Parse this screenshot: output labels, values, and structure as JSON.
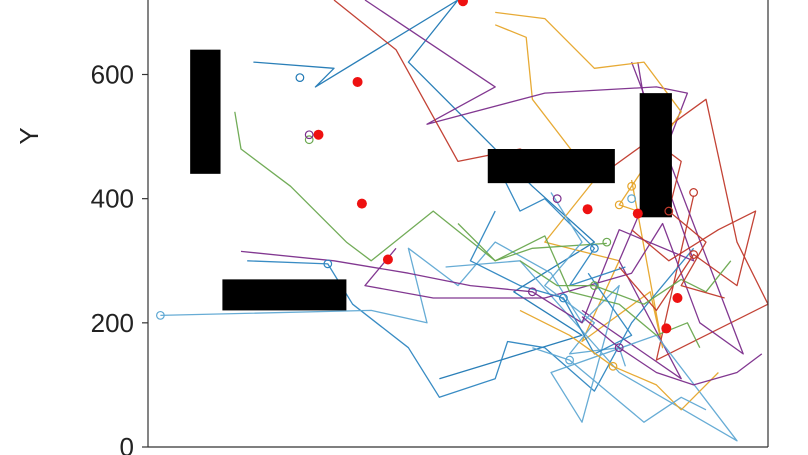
{
  "chart_data": {
    "type": "line",
    "title": "",
    "xlabel": "",
    "ylabel": "Y",
    "xlim": [
      0,
      1000
    ],
    "ylim": [
      0,
      720
    ],
    "grid": false,
    "legend": "none",
    "yticks": [
      {
        "value": 0,
        "label": "0"
      },
      {
        "value": 200,
        "label": "200"
      },
      {
        "value": 400,
        "label": "400"
      },
      {
        "value": 600,
        "label": "600"
      }
    ],
    "colors": {
      "target_point": "#ee1111",
      "obstacle": "#000000",
      "axis": "#333333"
    },
    "obstacles": [
      {
        "name": "left-vertical-wall",
        "x": [
          68,
          117
        ],
        "y": [
          440,
          640
        ]
      },
      {
        "name": "bottom-left-wall",
        "x": [
          120,
          320
        ],
        "y": [
          220,
          270
        ]
      },
      {
        "name": "center-horizontal-wall",
        "x": [
          548,
          753
        ],
        "y": [
          425,
          480
        ]
      },
      {
        "name": "right-vertical-wall",
        "x": [
          793,
          845
        ],
        "y": [
          370,
          570
        ]
      }
    ],
    "targets": [
      {
        "x": 508,
        "y": 718
      },
      {
        "x": 338,
        "y": 588
      },
      {
        "x": 275,
        "y": 503
      },
      {
        "x": 345,
        "y": 392
      },
      {
        "x": 387,
        "y": 302
      },
      {
        "x": 709,
        "y": 383
      },
      {
        "x": 790,
        "y": 376
      },
      {
        "x": 854,
        "y": 240
      },
      {
        "x": 836,
        "y": 191
      }
    ],
    "series": [
      {
        "color": "#1f78b4",
        "start": [
          245,
          595
        ],
        "end": [
          710,
          528
        ],
        "points": [
          [
            170,
            620
          ],
          [
            300,
            610
          ],
          [
            270,
            580
          ],
          [
            500,
            720
          ],
          [
            420,
            620
          ],
          [
            620,
            420
          ],
          [
            720,
            330
          ],
          [
            590,
            250
          ],
          [
            700,
            180
          ],
          [
            470,
            110
          ]
        ]
      },
      {
        "color": "#e6a52a",
        "start": [
          780,
          420
        ],
        "end": [
          830,
          420
        ],
        "points": [
          [
            560,
            680
          ],
          [
            610,
            660
          ],
          [
            620,
            560
          ],
          [
            720,
            430
          ],
          [
            640,
            330
          ],
          [
            760,
            300
          ],
          [
            700,
            170
          ],
          [
            810,
            250
          ],
          [
            830,
            160
          ],
          [
            780,
            430
          ]
        ]
      },
      {
        "color": "#7b2d8b",
        "start": [
          660,
          400
        ],
        "end": [
          560,
          240
        ],
        "points": [
          [
            350,
            720
          ],
          [
            560,
            580
          ],
          [
            450,
            520
          ],
          [
            640,
            570
          ],
          [
            820,
            580
          ],
          [
            870,
            570
          ],
          [
            820,
            440
          ],
          [
            760,
            300
          ],
          [
            860,
            110
          ],
          [
            700,
            220
          ]
        ]
      },
      {
        "color": "#c0392b",
        "start": [
          880,
          410
        ],
        "end": [
          880,
          405
        ],
        "points": [
          [
            300,
            720
          ],
          [
            400,
            640
          ],
          [
            500,
            460
          ],
          [
            600,
            480
          ],
          [
            720,
            430
          ],
          [
            900,
            560
          ],
          [
            950,
            330
          ],
          [
            1000,
            230
          ],
          [
            820,
            140
          ],
          [
            880,
            405
          ]
        ]
      },
      {
        "color": "#2e86c1",
        "start": [
          290,
          295
        ],
        "end": [
          880,
          320
        ],
        "points": [
          [
            160,
            300
          ],
          [
            290,
            295
          ],
          [
            330,
            230
          ],
          [
            420,
            160
          ],
          [
            470,
            80
          ],
          [
            560,
            110
          ],
          [
            580,
            170
          ],
          [
            640,
            160
          ],
          [
            720,
            90
          ],
          [
            780,
            200
          ],
          [
            880,
            320
          ]
        ]
      },
      {
        "color": "#5fa8d3",
        "start": [
          20,
          212
        ],
        "end": [
          480,
          290
        ],
        "points": [
          [
            20,
            212
          ],
          [
            360,
            220
          ],
          [
            450,
            200
          ],
          [
            420,
            320
          ],
          [
            500,
            260
          ],
          [
            560,
            330
          ],
          [
            650,
            280
          ],
          [
            700,
            200
          ],
          [
            760,
            260
          ],
          [
            700,
            40
          ],
          [
            650,
            120
          ],
          [
            820,
            180
          ],
          [
            950,
            10
          ],
          [
            760,
            120
          ],
          [
            600,
            300
          ],
          [
            480,
            290
          ]
        ]
      },
      {
        "color": "#6aa84f",
        "start": [
          260,
          495
        ],
        "end": [
          740,
          328
        ],
        "points": [
          [
            140,
            540
          ],
          [
            150,
            480
          ],
          [
            230,
            420
          ],
          [
            320,
            330
          ],
          [
            360,
            300
          ],
          [
            460,
            380
          ],
          [
            560,
            300
          ],
          [
            620,
            320
          ],
          [
            740,
            328
          ]
        ]
      },
      {
        "color": "#7b2d8b",
        "start": [
          260,
          503
        ],
        "end": [
          780,
          620
        ],
        "points": [
          [
            400,
            320
          ],
          [
            350,
            260
          ],
          [
            460,
            240
          ],
          [
            640,
            240
          ],
          [
            780,
            280
          ],
          [
            830,
            360
          ],
          [
            890,
            200
          ],
          [
            960,
            150
          ],
          [
            780,
            620
          ]
        ]
      },
      {
        "color": "#7b2d8b",
        "start": [
          620,
          250
        ],
        "end": [
          790,
          620
        ],
        "points": [
          [
            150,
            315
          ],
          [
            300,
            300
          ],
          [
            420,
            280
          ],
          [
            520,
            260
          ],
          [
            620,
            250
          ],
          [
            700,
            200
          ],
          [
            760,
            350
          ],
          [
            880,
            300
          ],
          [
            810,
            500
          ],
          [
            790,
            620
          ]
        ]
      },
      {
        "color": "#2e86c1",
        "start": [
          720,
          320
        ],
        "end": [
          770,
          290
        ],
        "points": [
          [
            560,
            460
          ],
          [
            600,
            380
          ],
          [
            640,
            400
          ],
          [
            700,
            340
          ],
          [
            720,
            320
          ],
          [
            680,
            260
          ],
          [
            770,
            290
          ]
        ]
      },
      {
        "color": "#e6a52a",
        "start": [
          760,
          390
        ],
        "end": [
          790,
          380
        ],
        "points": [
          [
            560,
            700
          ],
          [
            640,
            690
          ],
          [
            720,
            610
          ],
          [
            800,
            620
          ],
          [
            860,
            540
          ],
          [
            760,
            390
          ],
          [
            790,
            380
          ]
        ]
      },
      {
        "color": "#6aa84f",
        "start": [
          740,
          330
        ],
        "end": [
          890,
          160
        ],
        "points": [
          [
            500,
            360
          ],
          [
            560,
            300
          ],
          [
            640,
            340
          ],
          [
            680,
            250
          ],
          [
            760,
            230
          ],
          [
            820,
            180
          ],
          [
            870,
            200
          ],
          [
            890,
            160
          ]
        ]
      },
      {
        "color": "#5fa8d3",
        "start": [
          780,
          400
        ],
        "end": [
          770,
          130
        ],
        "points": [
          [
            650,
            410
          ],
          [
            700,
            330
          ],
          [
            640,
            260
          ],
          [
            720,
            200
          ],
          [
            680,
            150
          ],
          [
            760,
            160
          ],
          [
            770,
            130
          ]
        ]
      },
      {
        "color": "#c0392b",
        "start": [
          880,
          310
        ],
        "end": [
          760,
          290
        ],
        "points": [
          [
            780,
            350
          ],
          [
            840,
            300
          ],
          [
            920,
            350
          ],
          [
            980,
            380
          ],
          [
            950,
            260
          ],
          [
            880,
            310
          ],
          [
            820,
            220
          ],
          [
            760,
            290
          ]
        ]
      },
      {
        "color": "#2e86c1",
        "start": [
          670,
          240
        ],
        "end": [
          710,
          280
        ],
        "points": [
          [
            560,
            380
          ],
          [
            520,
            300
          ],
          [
            600,
            260
          ],
          [
            670,
            240
          ],
          [
            720,
            150
          ],
          [
            780,
            180
          ],
          [
            710,
            280
          ]
        ]
      },
      {
        "color": "#6aa84f",
        "start": [
          720,
          260
        ],
        "end": [
          900,
          250
        ],
        "points": [
          [
            600,
            300
          ],
          [
            660,
            260
          ],
          [
            720,
            260
          ],
          [
            800,
            230
          ],
          [
            860,
            270
          ],
          [
            900,
            250
          ],
          [
            940,
            300
          ]
        ]
      },
      {
        "color": "#e6a52a",
        "start": [
          750,
          130
        ],
        "end": [
          920,
          120
        ],
        "points": [
          [
            600,
            220
          ],
          [
            680,
            180
          ],
          [
            750,
            130
          ],
          [
            820,
            100
          ],
          [
            860,
            60
          ],
          [
            920,
            120
          ]
        ]
      },
      {
        "color": "#c0392b",
        "start": [
          840,
          380
        ],
        "end": [
          860,
          260
        ],
        "points": [
          [
            820,
            490
          ],
          [
            860,
            460
          ],
          [
            840,
            380
          ],
          [
            900,
            330
          ],
          [
            860,
            260
          ],
          [
            930,
            240
          ]
        ]
      },
      {
        "color": "#5fa8d3",
        "start": [
          680,
          140
        ],
        "end": [
          900,
          60
        ],
        "points": [
          [
            620,
            160
          ],
          [
            680,
            140
          ],
          [
            740,
            90
          ],
          [
            800,
            40
          ],
          [
            860,
            80
          ],
          [
            900,
            60
          ]
        ]
      },
      {
        "color": "#7b2d8b",
        "start": [
          760,
          160
        ],
        "end": [
          950,
          120
        ],
        "points": [
          [
            700,
            210
          ],
          [
            760,
            160
          ],
          [
            820,
            120
          ],
          [
            880,
            100
          ],
          [
            950,
            120
          ],
          [
            990,
            150
          ]
        ]
      }
    ]
  }
}
